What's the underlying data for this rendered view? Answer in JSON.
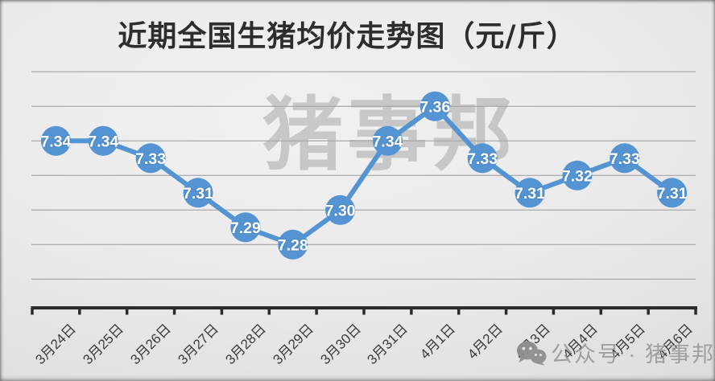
{
  "chart_data": {
    "type": "line",
    "title": "近期全国生猪均价走势图（元/斤）",
    "categories": [
      "3月24日",
      "3月25日",
      "3月26日",
      "3月27日",
      "3月28日",
      "3月29日",
      "3月30日",
      "3月31日",
      "4月1日",
      "4月2日",
      "4月3日",
      "4月4日",
      "4月5日",
      "4月6日"
    ],
    "values": [
      7.34,
      7.34,
      7.33,
      7.31,
      7.29,
      7.28,
      7.3,
      7.34,
      7.36,
      7.33,
      7.31,
      7.32,
      7.33,
      7.31
    ],
    "xlabel": "",
    "ylabel": "",
    "ylim": [
      7.26,
      7.38
    ],
    "grid_step": 0.02,
    "grid": "horizontal-only",
    "legend_position": "none",
    "data_labels": "on-point",
    "line_color": "#5494d3",
    "point_color": "#5494d3",
    "data_label_color": "#ffffff",
    "gridline_color": "#a6a6a6",
    "axis_color": "#2b2b2b",
    "x_label_color": "#3a3a3a"
  },
  "watermarks": {
    "center": "猪事邦",
    "bottom_icon": "wechat-icon",
    "bottom": "公众号 · 猪事邦"
  }
}
